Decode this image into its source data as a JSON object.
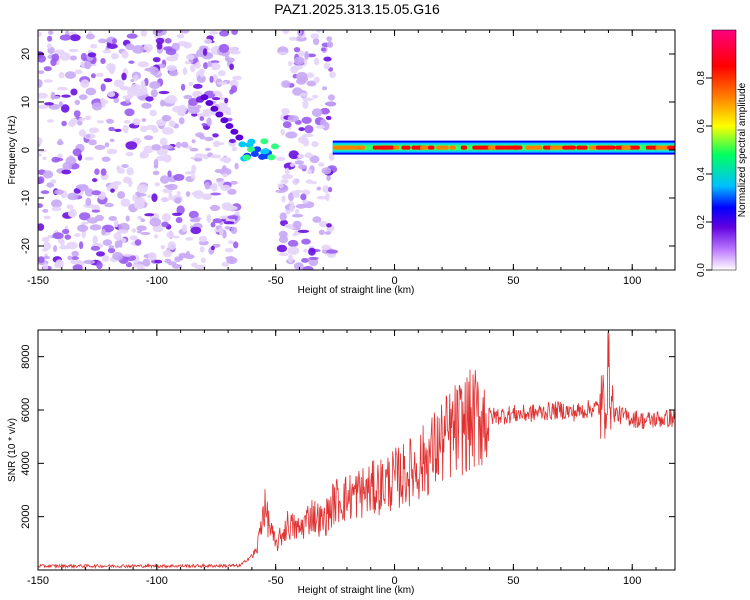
{
  "chart_data": [
    {
      "type": "heatmap",
      "title": "PAZ1.2025.313.15.05.G16",
      "xlabel": "Height of straight line (km)",
      "ylabel": "Frequency (Hz)",
      "xlim": [
        -150,
        118
      ],
      "ylim": [
        -25,
        25
      ],
      "xticks": [
        -150,
        -100,
        -50,
        0,
        50,
        100
      ],
      "yticks": [
        -20,
        -10,
        0,
        10,
        20
      ],
      "colorbar": {
        "label": "Normalized spectral amplitude",
        "range": [
          0,
          1
        ],
        "ticks": [
          0.0,
          0.2,
          0.4,
          0.6,
          0.8
        ],
        "colors": [
          "#ffffff",
          "#c080ff",
          "#6000e0",
          "#0000ff",
          "#00c0ff",
          "#00ff60",
          "#ffff00",
          "#ff8000",
          "#ff0000",
          "#ff0080"
        ]
      },
      "regions": [
        {
          "name": "noise",
          "x_range": [
            -150,
            -66
          ],
          "freq_range": [
            -25,
            25
          ],
          "amplitude": 0.05
        },
        {
          "name": "noise",
          "x_range": [
            -48,
            -26
          ],
          "freq_range": [
            -25,
            25
          ],
          "amplitude": 0.05
        },
        {
          "name": "transition-blob",
          "x_range": [
            -66,
            -48
          ],
          "freq_center": 0,
          "amplitude": 0.35
        },
        {
          "name": "signal-line",
          "x_range": [
            -26,
            118
          ],
          "freq_center": 0.5,
          "amplitude": 0.9
        }
      ]
    },
    {
      "type": "line",
      "xlabel": "Height of straight line (km)",
      "ylabel": "SNR (10 * v/v)",
      "xlim": [
        -150,
        118
      ],
      "ylim": [
        0,
        9000
      ],
      "xticks": [
        -150,
        -100,
        -50,
        0,
        50,
        100
      ],
      "yticks": [
        2000,
        4000,
        6000,
        8000
      ],
      "color": "#e03030",
      "series": [
        {
          "name": "SNR",
          "x": [
            -150,
            -100,
            -65,
            -58,
            -55,
            -50,
            -45,
            -40,
            -35,
            -30,
            -25,
            -20,
            -15,
            -10,
            -5,
            0,
            5,
            10,
            15,
            20,
            25,
            30,
            35,
            40,
            45,
            50,
            55,
            60,
            65,
            70,
            75,
            80,
            85,
            88,
            90,
            92,
            95,
            100,
            105,
            110,
            118
          ],
          "y": [
            150,
            150,
            160,
            700,
            2400,
            900,
            1700,
            1500,
            2100,
            1800,
            2600,
            2700,
            2900,
            3000,
            3200,
            3400,
            3600,
            3900,
            4300,
            4800,
            5200,
            5500,
            5700,
            5750,
            5800,
            5850,
            5850,
            5900,
            5950,
            6000,
            5900,
            6000,
            6100,
            6000,
            7600,
            5900,
            5800,
            5700,
            5600,
            5650,
            5700
          ]
        }
      ]
    }
  ]
}
